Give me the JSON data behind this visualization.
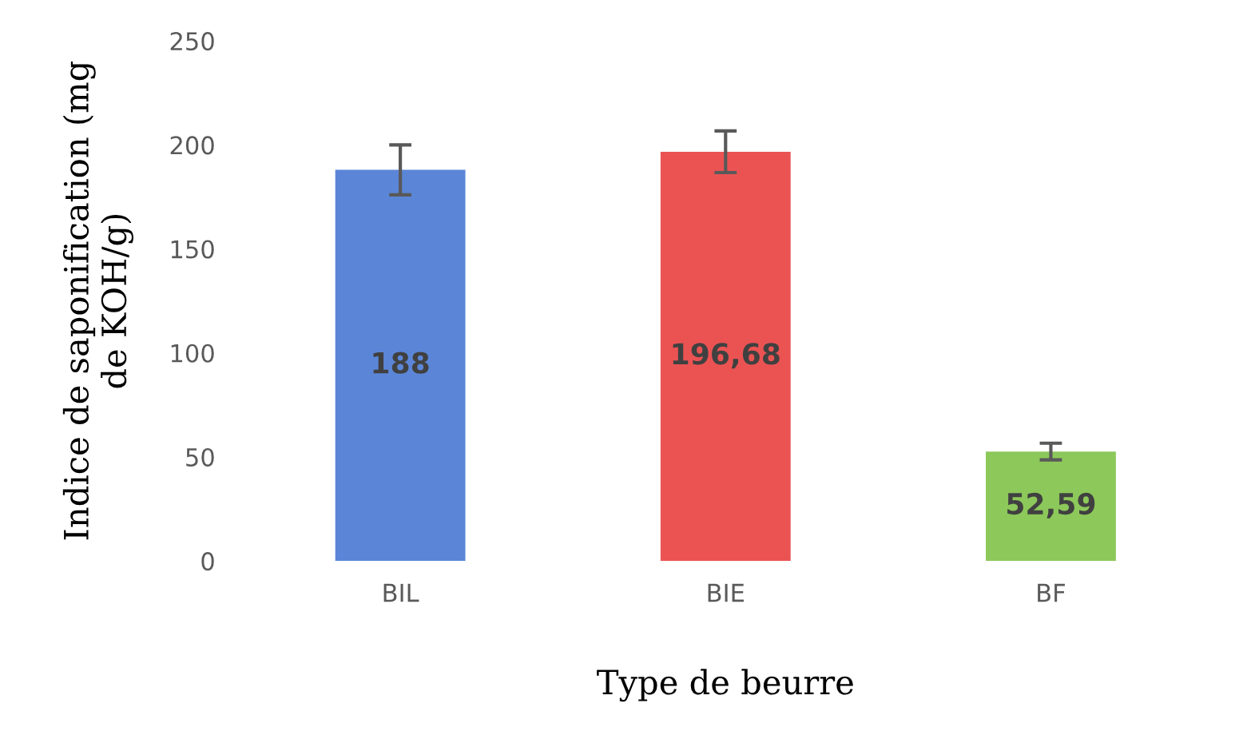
{
  "chart_data": {
    "type": "bar",
    "xlabel": "Type de beurre",
    "ylabel": "Indice de saponification (mg\nde KOH/g)",
    "categories": [
      "BIL",
      "BIE",
      "BF"
    ],
    "values": [
      188,
      196.68,
      52.59
    ],
    "value_labels": [
      "188",
      "196,68",
      "52,59"
    ],
    "errors": [
      12,
      10,
      4
    ],
    "colors": [
      "#5b86d8",
      "#eb5353",
      "#8cc85a"
    ],
    "ylim": [
      0,
      250
    ],
    "yticks": [
      0,
      50,
      100,
      150,
      200,
      250
    ],
    "grid": false
  }
}
